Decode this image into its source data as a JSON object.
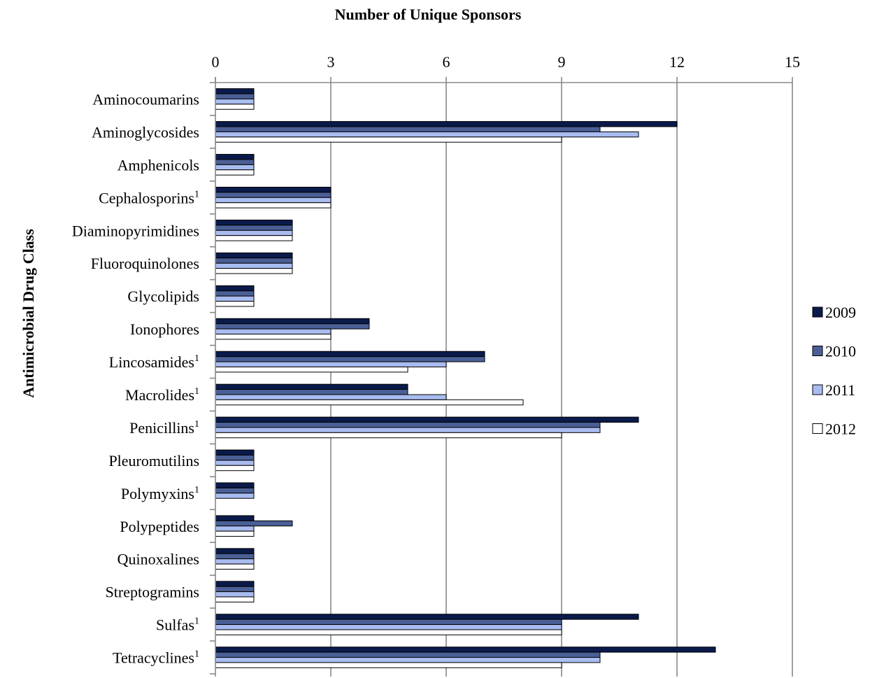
{
  "chart_data": {
    "type": "bar",
    "orientation": "horizontal",
    "title": "Number of Unique Sponsors",
    "xlabel": "Number of Unique Sponsors",
    "ylabel": "Antimicrobial Drug Class",
    "xlim": [
      0,
      15
    ],
    "xticks": [
      "0",
      "3",
      "6",
      "9",
      "12",
      "15"
    ],
    "grid": true,
    "legend_position": "right",
    "categories": [
      {
        "name": "Aminocoumarins",
        "sup": ""
      },
      {
        "name": "Aminoglycosides",
        "sup": ""
      },
      {
        "name": "Amphenicols",
        "sup": ""
      },
      {
        "name": "Cephalosporins",
        "sup": "1"
      },
      {
        "name": "Diaminopyrimidines",
        "sup": ""
      },
      {
        "name": "Fluoroquinolones",
        "sup": ""
      },
      {
        "name": "Glycolipids",
        "sup": ""
      },
      {
        "name": "Ionophores",
        "sup": ""
      },
      {
        "name": "Lincosamides",
        "sup": "1"
      },
      {
        "name": "Macrolides",
        "sup": "1"
      },
      {
        "name": "Penicillins",
        "sup": "1"
      },
      {
        "name": "Pleuromutilins",
        "sup": ""
      },
      {
        "name": "Polymyxins",
        "sup": "1"
      },
      {
        "name": "Polypeptides",
        "sup": ""
      },
      {
        "name": "Quinoxalines",
        "sup": ""
      },
      {
        "name": "Streptogramins",
        "sup": ""
      },
      {
        "name": "Sulfas",
        "sup": "1"
      },
      {
        "name": "Tetracyclines",
        "sup": "1"
      }
    ],
    "series": [
      {
        "name": "2009",
        "color": "#0a1a4a",
        "values": [
          1,
          12,
          1,
          3,
          2,
          2,
          1,
          4,
          7,
          5,
          11,
          1,
          1,
          1,
          1,
          1,
          11,
          13
        ]
      },
      {
        "name": "2010",
        "color": "#4a5f95",
        "values": [
          1,
          10,
          1,
          3,
          2,
          2,
          1,
          4,
          7,
          5,
          10,
          1,
          1,
          2,
          1,
          1,
          9,
          10
        ]
      },
      {
        "name": "2011",
        "color": "#a9bcf0",
        "values": [
          1,
          11,
          1,
          3,
          2,
          2,
          1,
          3,
          6,
          6,
          10,
          1,
          1,
          1,
          1,
          1,
          9,
          10
        ]
      },
      {
        "name": "2012",
        "color": "#ffffff",
        "values": [
          1,
          9,
          1,
          3,
          2,
          2,
          1,
          3,
          5,
          8,
          9,
          1,
          0,
          1,
          1,
          1,
          9,
          9
        ]
      }
    ]
  }
}
